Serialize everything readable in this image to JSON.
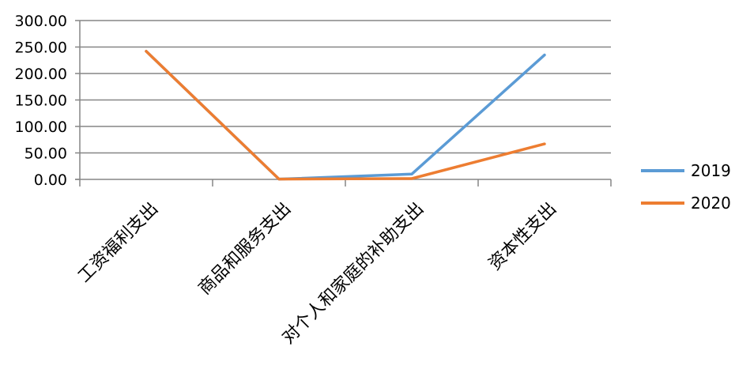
{
  "chart_data": {
    "type": "line",
    "categories": [
      "工资福利支出",
      "商品和服务支出",
      "对个人和家庭的补助支出",
      "资本性支出"
    ],
    "series": [
      {
        "name": "2019",
        "values": [
          242.0,
          0.5,
          10.0,
          235.0
        ],
        "color": "#5b9bd5"
      },
      {
        "name": "2020",
        "values": [
          242.0,
          0.5,
          1.5,
          67.0
        ],
        "color": "#ed7d31"
      }
    ],
    "ylim": [
      0,
      300
    ],
    "yticks": [
      "0.00",
      "50.00",
      "100.00",
      "150.00",
      "200.00",
      "250.00",
      "300.00"
    ],
    "grid": true,
    "legend_position": "right",
    "title": "",
    "xlabel": "",
    "ylabel": ""
  }
}
